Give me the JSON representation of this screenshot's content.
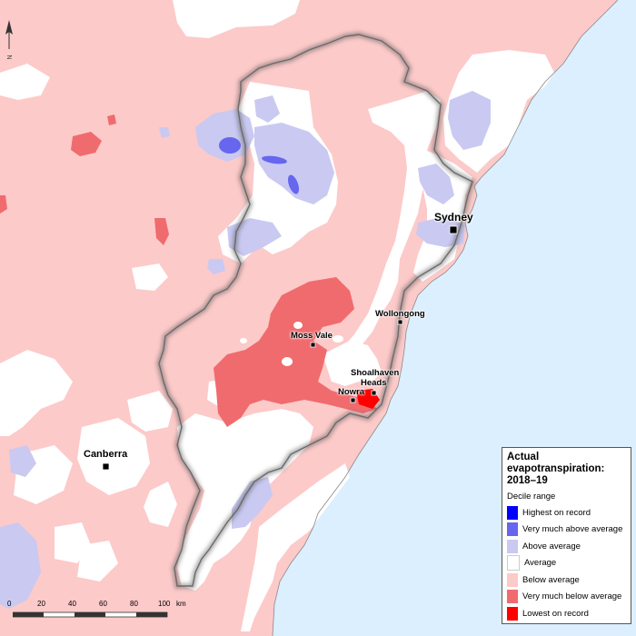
{
  "colors": {
    "ocean": "#dcefff",
    "below_average": "#fccac9",
    "average": "#ffffff",
    "above_average": "#c9c9f2",
    "very_much_above": "#6666ee",
    "very_much_below": "#f06b6e",
    "lowest": "#ff0000",
    "highest": "#0000ff"
  },
  "cities": [
    {
      "name": "Sydney"
    },
    {
      "name": "Wollongong"
    },
    {
      "name": "Moss Vale"
    },
    {
      "name": "Shoalhaven"
    },
    {
      "name": "Heads"
    },
    {
      "name": "Nowra"
    },
    {
      "name": "Canberra"
    }
  ],
  "north_arrow_label": "N",
  "legend": {
    "title_line1": "Actual",
    "title_line2": "evapotranspiration:",
    "title_line3": "2018–19",
    "subtitle": "Decile range",
    "items": [
      {
        "label": "Highest on record",
        "color": "#0000ff"
      },
      {
        "label": "Very much above average",
        "color": "#6666ee"
      },
      {
        "label": "Above average",
        "color": "#c9c9f2"
      },
      {
        "label": "Average",
        "color": "#ffffff"
      },
      {
        "label": "Below average",
        "color": "#fccac9"
      },
      {
        "label": "Very much below average",
        "color": "#f06b6e"
      },
      {
        "label": "Lowest on record",
        "color": "#ff0000"
      }
    ]
  },
  "scale": {
    "ticks": [
      "0",
      "20",
      "40",
      "60",
      "80",
      "100"
    ],
    "unit": "km"
  }
}
